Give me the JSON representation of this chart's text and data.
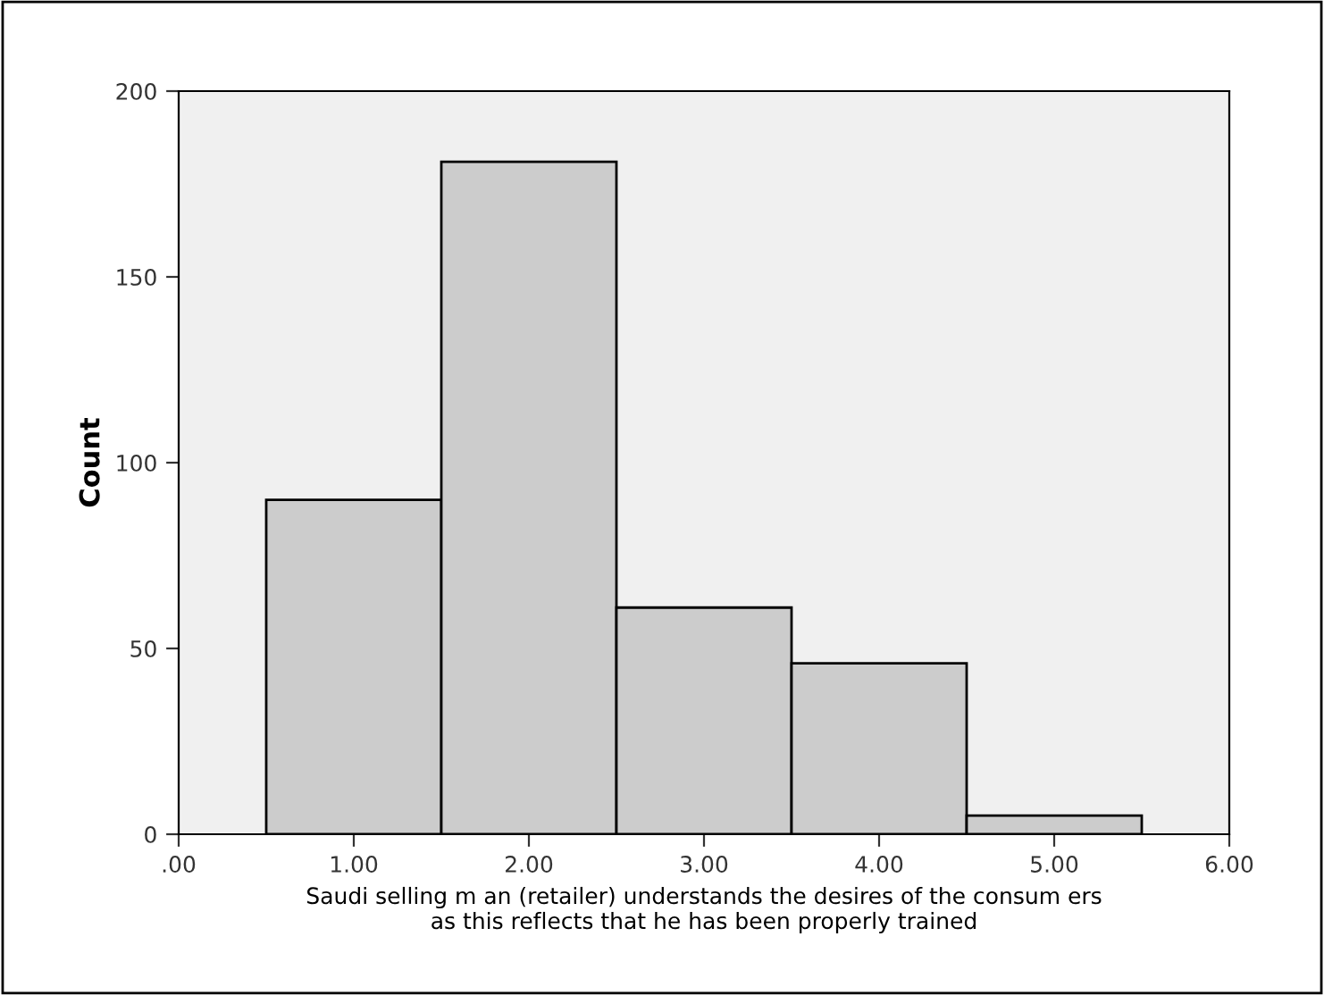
{
  "chart_data": {
    "type": "histogram",
    "xlabel": "Saudi selling m an (retailer) understands the desires of the consum ers\nas this reflects that he has been properly trained",
    "ylabel": "Count",
    "bins": [
      0.5,
      1.5,
      2.5,
      3.5,
      4.5,
      5.5
    ],
    "values": [
      90,
      181,
      61,
      46,
      5
    ],
    "color": "#cccccc",
    "xlim": [
      0,
      6
    ],
    "xticks": [
      {
        "value": 0,
        "label": ".00"
      },
      {
        "value": 1,
        "label": "1.00"
      },
      {
        "value": 2,
        "label": "2.00"
      },
      {
        "value": 3,
        "label": "3.00"
      },
      {
        "value": 4,
        "label": "4.00"
      },
      {
        "value": 5,
        "label": "5.00"
      },
      {
        "value": 6,
        "label": "6.00"
      }
    ],
    "ylim": [
      0,
      200
    ],
    "yticks": [
      0,
      50,
      100,
      150,
      200
    ],
    "grid": false
  }
}
